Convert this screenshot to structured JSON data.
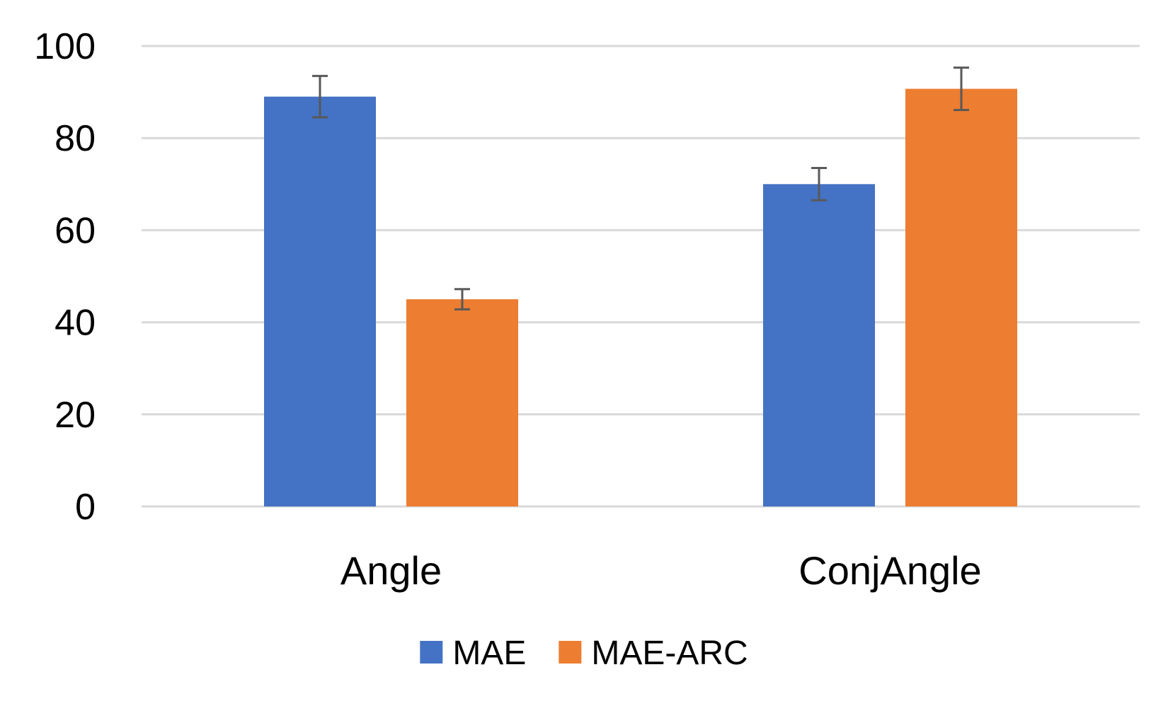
{
  "chart_data": {
    "type": "bar",
    "categories": [
      "Angle",
      "ConjAngle"
    ],
    "series": [
      {
        "name": "MAE",
        "values": [
          89,
          70
        ],
        "error": [
          4.5,
          3.5
        ],
        "color": "#4472C4"
      },
      {
        "name": "MAE-ARC",
        "values": [
          45,
          90.7
        ],
        "error": [
          2.2,
          4.6
        ],
        "color": "#ED7D31"
      }
    ],
    "ylim": [
      0,
      100
    ],
    "yticks": [
      0,
      20,
      40,
      60,
      80,
      100
    ],
    "ytick_labels": [
      "0",
      "20",
      "40",
      "60",
      "80",
      "100"
    ],
    "grid": true,
    "grid_color": "#D9D9D9",
    "error_bar_color": "#595959",
    "legend_position": "bottom"
  }
}
